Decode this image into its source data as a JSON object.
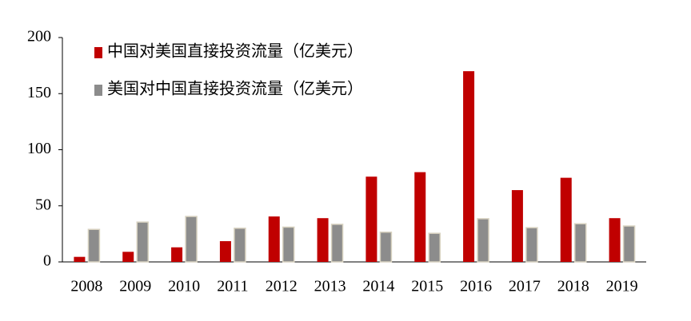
{
  "chart_data": {
    "type": "bar",
    "categories": [
      "2008",
      "2009",
      "2010",
      "2011",
      "2012",
      "2013",
      "2014",
      "2015",
      "2016",
      "2017",
      "2018",
      "2019"
    ],
    "series": [
      {
        "name": "中国对美国直接投资流量（亿美元）",
        "color": "#c00000",
        "values": [
          4.5,
          9,
          13,
          18.5,
          40.5,
          39,
          76,
          80,
          170,
          64,
          75,
          39
        ]
      },
      {
        "name": "美国对中国直接投资流量（亿美元）",
        "color": "#8c8c8c",
        "values": [
          29,
          35.5,
          40.5,
          30,
          31,
          33.5,
          26.5,
          25.5,
          38.5,
          30.5,
          34,
          32
        ]
      }
    ],
    "ylim": [
      0,
      200
    ],
    "yticks": [
      0,
      50,
      100,
      150,
      200
    ],
    "grid": false,
    "legend": "top-left"
  }
}
